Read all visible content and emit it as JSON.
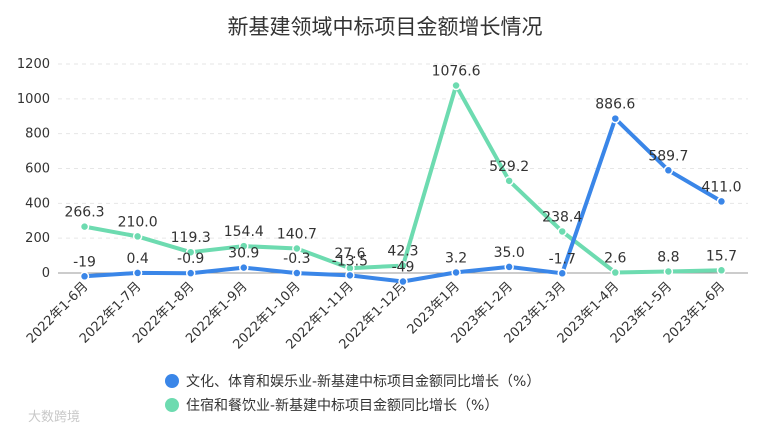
{
  "chart_data": {
    "type": "line",
    "title": "新基建领域中标项目金额增长情况",
    "categories": [
      "2022年1-6月",
      "2022年1-7月",
      "2022年1-8月",
      "2022年1-9月",
      "2022年1-10月",
      "2022年1-11月",
      "2022年1-12月",
      "2023年1月",
      "2023年1-2月",
      "2023年1-3月",
      "2023年1-4月",
      "2023年1-5月",
      "2023年1-6月"
    ],
    "ylim": [
      -50,
      1200
    ],
    "yticks": [
      "0",
      "200",
      "400",
      "600",
      "800",
      "1000",
      "1200"
    ],
    "grid": true,
    "legend_position": "bottom",
    "series": [
      {
        "name": "文化、体育和娱乐业-新基建中标项目金额同比增长（%）",
        "color": "#3a86e8",
        "values": [
          -19,
          0.4,
          -0.9,
          30.9,
          -0.3,
          -13.5,
          -49,
          3.2,
          35.0,
          -1.7,
          886.6,
          589.7,
          411.0
        ],
        "labels": [
          "-19",
          "0.4",
          "-0.9",
          "30.9",
          "-0.3",
          "-13.5",
          "-49",
          "3.2",
          "35.0",
          "-1.7",
          "886.6",
          "589.7",
          "411.0"
        ]
      },
      {
        "name": "住宿和餐饮业-新基建中标项目金额同比增长（%）",
        "color": "#6ddbb0",
        "values": [
          266.3,
          210.0,
          119.3,
          154.4,
          140.7,
          27.6,
          42.3,
          1076.6,
          529.2,
          238.4,
          2.6,
          8.8,
          15.7
        ],
        "labels": [
          "266.3",
          "210.0",
          "119.3",
          "154.4",
          "140.7",
          "27.6",
          "42.3",
          "1076.6",
          "529.2",
          "238.4",
          "2.6",
          "8.8",
          "15.7"
        ]
      }
    ]
  },
  "watermark": "大数跨境"
}
